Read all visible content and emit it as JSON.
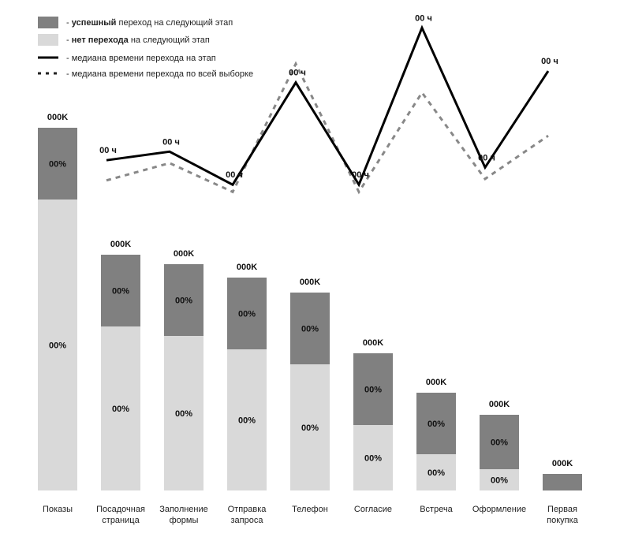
{
  "colors": {
    "success": "#808080",
    "no_transition": "#d9d9d9",
    "median_line": "#000000",
    "overall_line": "#888888"
  },
  "legend": [
    {
      "key": "success",
      "marker": "swatch-dark",
      "prefix": "- ",
      "bold": "успешный",
      "rest": " переход на следующий этап"
    },
    {
      "key": "no_transition",
      "marker": "swatch-light",
      "prefix": "- ",
      "bold": "нет перехода",
      "rest": " на следующий этап"
    },
    {
      "key": "median_line",
      "marker": "line-solid",
      "prefix": "- ",
      "bold": "",
      "rest": "медиана времени перехода на этап"
    },
    {
      "key": "overall_line",
      "marker": "line-dotted",
      "prefix": "- ",
      "bold": "",
      "rest": "медиана времени перехода по всей выборке"
    }
  ],
  "chart_data": {
    "type": "bar",
    "stacked": true,
    "title": "",
    "xlabel": "",
    "ylabel": "",
    "categories": [
      [
        "Показы"
      ],
      [
        "Посадочная",
        "страница"
      ],
      [
        "Заполнение",
        "формы"
      ],
      [
        "Отправка",
        "запроса"
      ],
      [
        "Телефон"
      ],
      [
        "Согласие"
      ],
      [
        "Встреча"
      ],
      [
        "Оформление"
      ],
      [
        "Первая",
        "покупка"
      ]
    ],
    "series": [
      {
        "name": "нет перехода",
        "values": [
          369,
          208,
          196,
          179,
          160,
          83,
          46,
          27,
          0
        ],
        "labels": [
          "00%",
          "00%",
          "00%",
          "00%",
          "00%",
          "00%",
          "00%",
          "00%",
          ""
        ]
      },
      {
        "name": "успешный",
        "values": [
          91,
          91,
          91,
          91,
          91,
          91,
          78,
          69,
          21
        ],
        "labels": [
          "00%",
          "00%",
          "00%",
          "00%",
          "00%",
          "00%",
          "00%",
          "00%",
          ""
        ]
      }
    ],
    "totals": [
      "000K",
      "000K",
      "000K",
      "000K",
      "000K",
      "000K",
      "000K",
      "000K",
      "000K"
    ],
    "ylim": [
      0,
      460
    ],
    "lines": {
      "median_stage": {
        "name": "медиана времени перехода на этап",
        "values": [
          64,
          70,
          47,
          118,
          47,
          156,
          59,
          126
        ],
        "labels": [
          "00 ч",
          "00 ч",
          "00 ч",
          "00 ч",
          "00 ч",
          "00 ч",
          "00 ч",
          "00 ч"
        ]
      },
      "median_overall": {
        "name": "медиана времени перехода по всей выборке",
        "values": [
          50,
          62,
          42,
          131,
          42,
          111,
          51,
          81
        ]
      },
      "ylim": [
        0,
        160
      ]
    }
  }
}
